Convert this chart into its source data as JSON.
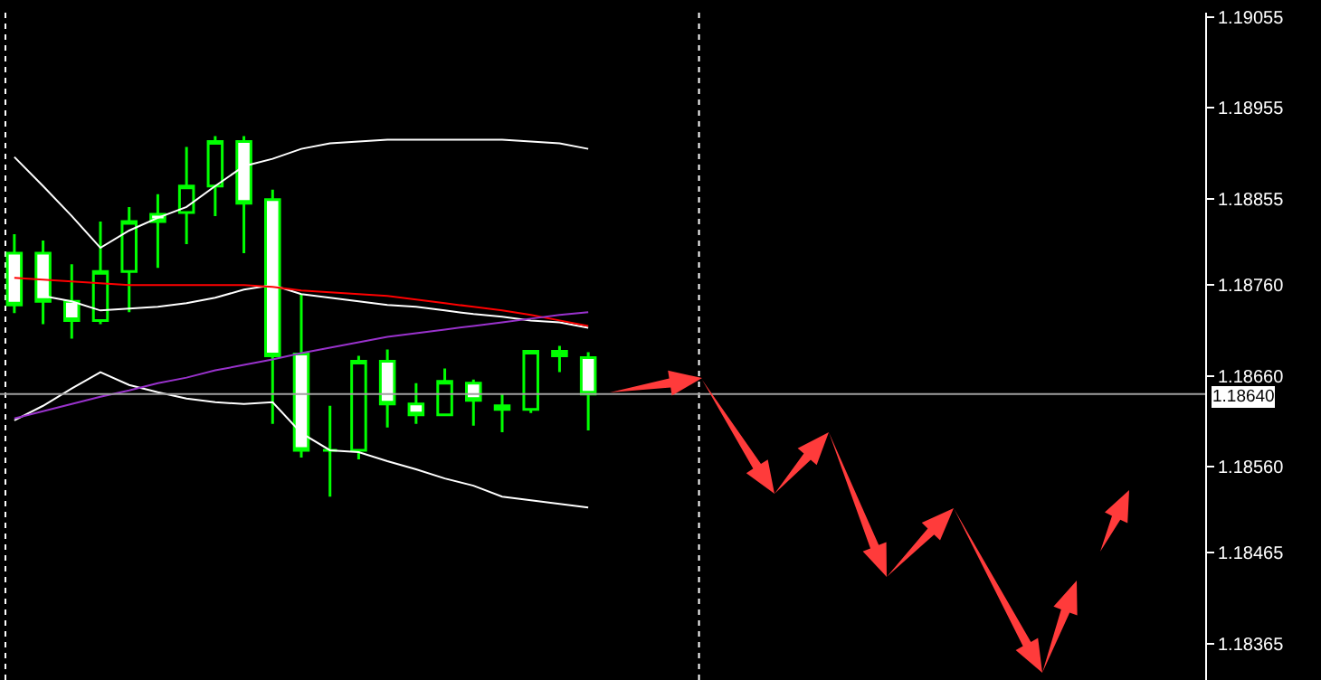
{
  "chart_data": {
    "type": "candlestick",
    "categories": [
      null,
      null,
      null,
      null,
      null,
      null,
      null,
      null,
      null,
      null,
      null,
      null,
      null,
      null,
      null,
      null,
      null,
      null,
      null,
      null,
      null,
      null,
      null,
      null,
      null,
      null,
      null,
      null,
      null,
      null,
      null,
      null,
      null,
      null,
      null,
      null,
      null,
      null,
      null,
      null,
      null,
      null
    ],
    "color": "#00ff00",
    "ohlc": [
      [
        1.18795,
        1.18816,
        1.18729,
        1.18738
      ],
      [
        1.18795,
        1.18809,
        1.18717,
        1.18742
      ],
      [
        1.18742,
        1.18783,
        1.18701,
        1.18721
      ],
      [
        1.18721,
        1.1883,
        1.18717,
        1.18775
      ],
      [
        1.18775,
        1.18846,
        1.1873,
        1.1883
      ],
      [
        1.18838,
        1.1886,
        1.18779,
        1.1883
      ],
      [
        1.1884,
        1.18912,
        1.18805,
        1.18869
      ],
      [
        1.18869,
        1.18924,
        1.18836,
        1.18918
      ],
      [
        1.18918,
        1.18924,
        1.18795,
        1.1885
      ],
      [
        1.18854,
        1.18865,
        1.18607,
        1.18682
      ],
      [
        1.18684,
        1.1875,
        1.1857,
        1.18578
      ],
      [
        1.18578,
        1.18627,
        1.18527,
        1.18578
      ],
      [
        1.18578,
        1.18682,
        1.18568,
        1.18676
      ],
      [
        1.18676,
        1.18689,
        1.18603,
        1.18629
      ],
      [
        1.18629,
        1.18652,
        1.18607,
        1.18617
      ],
      [
        1.18617,
        1.18668,
        1.18617,
        1.18654
      ],
      [
        1.18652,
        1.18656,
        1.18605,
        1.18633
      ],
      [
        1.18623,
        1.1864,
        1.18598,
        1.18627
      ],
      [
        1.18623,
        1.18687,
        1.18619,
        1.18687
      ],
      [
        1.18687,
        1.18693,
        1.18664,
        1.18682
      ],
      [
        1.1868,
        1.18686,
        1.186,
        1.1864
      ],
      null,
      null,
      null,
      null,
      null,
      null,
      null,
      null,
      null,
      null,
      null,
      null,
      null,
      null,
      null,
      null,
      null,
      null,
      null,
      null,
      null
    ],
    "series": [
      {
        "type": "line",
        "color": "#ffffff",
        "values": [
          1.18901,
          1.18869,
          1.18836,
          1.18801,
          1.1882,
          1.18834,
          1.18846,
          1.18869,
          1.18891,
          1.18899,
          1.1891,
          1.18916,
          1.18918,
          1.1892,
          1.1892,
          1.1892,
          1.1892,
          1.1892,
          1.18918,
          1.18916,
          1.1891,
          null,
          null,
          null,
          null,
          null,
          null,
          null,
          null,
          null,
          null,
          null,
          null,
          null,
          null,
          null,
          null,
          null,
          null,
          null,
          null,
          null
        ]
      },
      {
        "type": "line",
        "color": "#ffffff",
        "values": [
          null,
          1.18748,
          1.18742,
          1.18732,
          1.18734,
          1.18736,
          1.1874,
          1.18746,
          1.18755,
          1.1876,
          1.1875,
          1.18746,
          1.18742,
          1.18738,
          1.18736,
          1.18732,
          1.18728,
          1.18725,
          1.18721,
          1.18719,
          1.18713,
          null,
          null,
          null,
          null,
          null,
          null,
          null,
          null,
          null,
          null,
          null,
          null,
          null,
          null,
          null,
          null,
          null,
          null,
          null,
          null,
          null
        ]
      },
      {
        "type": "line",
        "color": "#ffffff",
        "values": [
          1.18611,
          1.18627,
          1.18646,
          1.18664,
          1.1865,
          1.18642,
          1.18635,
          1.18631,
          1.18629,
          1.18631,
          1.18597,
          1.18578,
          1.18576,
          1.18566,
          1.18557,
          1.18547,
          1.18539,
          1.18527,
          1.18523,
          1.18519,
          1.18515,
          null,
          null,
          null,
          null,
          null,
          null,
          null,
          null,
          null,
          null,
          null,
          null,
          null,
          null,
          null,
          null,
          null,
          null,
          null,
          null,
          null
        ]
      },
      {
        "type": "line",
        "color": "#ff0000",
        "values": [
          1.18768,
          1.18766,
          1.18764,
          1.18762,
          1.1876,
          1.1876,
          1.1876,
          1.1876,
          1.1876,
          1.18758,
          1.18754,
          1.18752,
          1.1875,
          1.18748,
          1.18744,
          1.1874,
          1.18736,
          1.18732,
          1.18727,
          1.18721,
          1.18715,
          null,
          null,
          null,
          null,
          null,
          null,
          null,
          null,
          null,
          null,
          null,
          null,
          null,
          null,
          null,
          null,
          null,
          null,
          null,
          null,
          null
        ]
      },
      {
        "type": "line",
        "color": "#9932cc",
        "values": [
          1.18613,
          1.18621,
          1.18629,
          1.18637,
          1.18644,
          1.18652,
          1.18658,
          1.18666,
          1.18672,
          1.18678,
          1.18685,
          1.18691,
          1.18697,
          1.18703,
          1.18707,
          1.18711,
          1.18715,
          1.18719,
          1.18723,
          1.18727,
          1.1873,
          null,
          null,
          null,
          null,
          null,
          null,
          null,
          null,
          null,
          null,
          null,
          null,
          null,
          null,
          null,
          null,
          null,
          null,
          null,
          null,
          null
        ]
      }
    ],
    "ylim": [
      1.18325,
      1.1906
    ],
    "yticks": [
      1.19055,
      1.18955,
      1.18855,
      {
        "value": 1.1876,
        "label": "1.18760"
      },
      {
        "value": 1.1866,
        "label": "1.18660"
      },
      {
        "value": 1.1856,
        "label": "1.18560"
      },
      1.18465,
      1.18365
    ],
    "ref_lines": [
      {
        "axis": "y",
        "value": 1.1864,
        "label": "1.18640",
        "color": "#a0a0a0"
      }
    ],
    "tick_labels": "y",
    "grid": false
  }
}
